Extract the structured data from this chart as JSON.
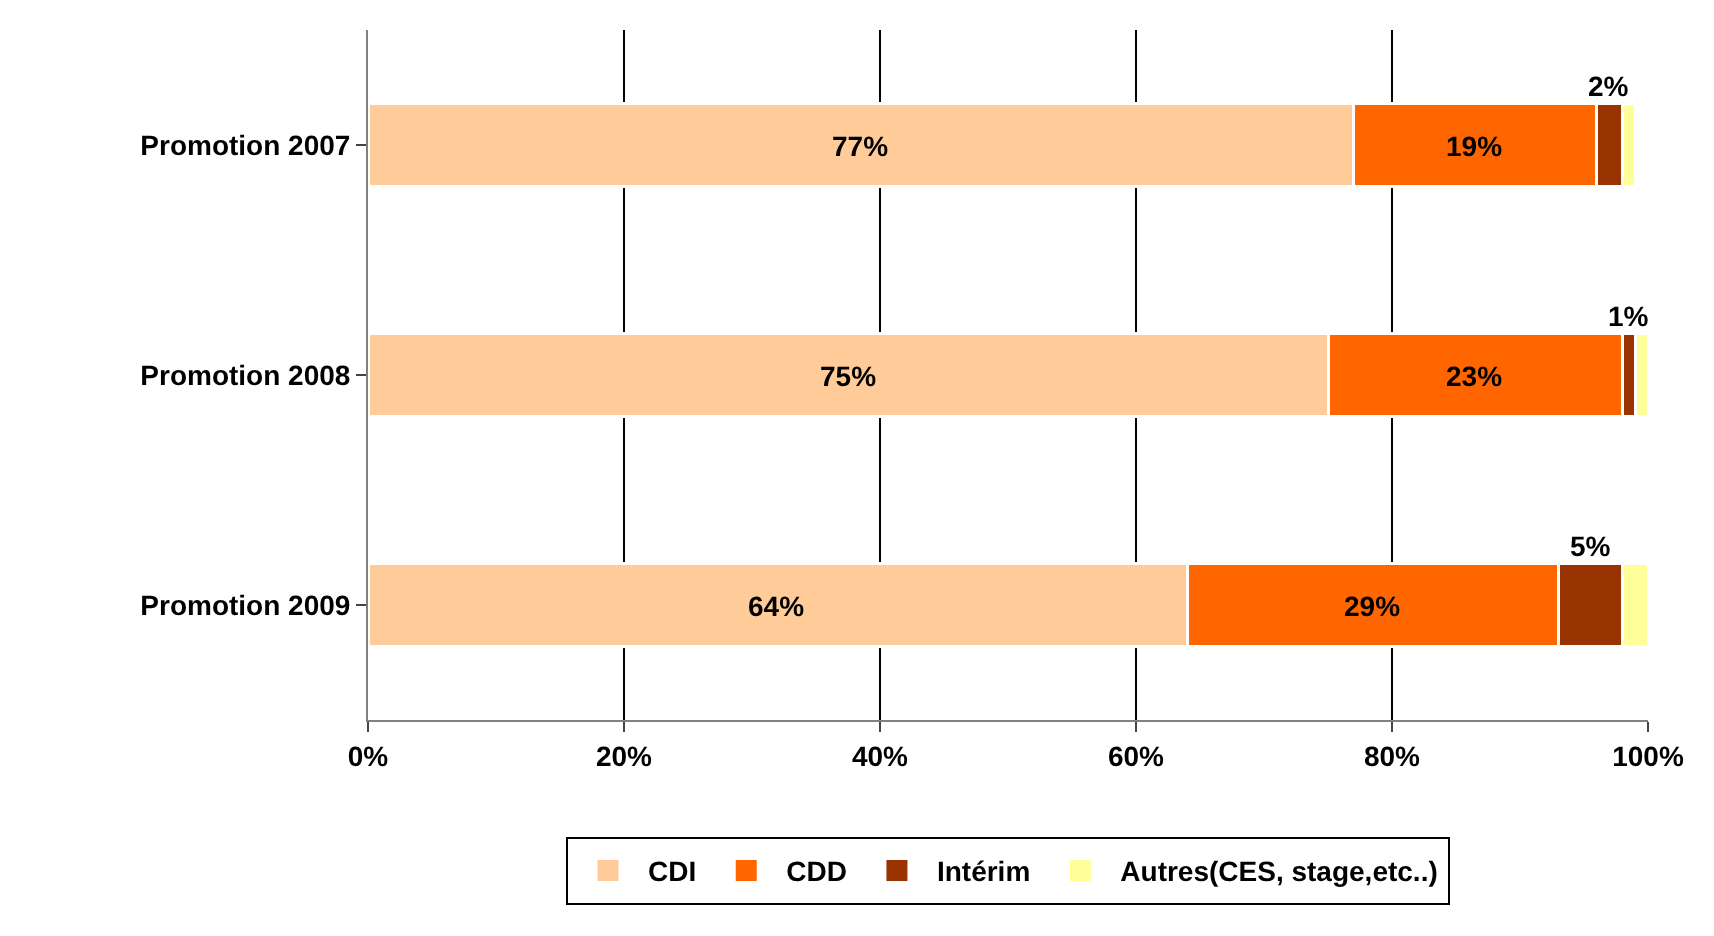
{
  "chart_data": {
    "type": "bar",
    "orientation": "horizontal",
    "stacked": true,
    "categories": [
      "Promotion 2007",
      "Promotion 2008",
      "Promotion 2009"
    ],
    "series": [
      {
        "name": "CDI",
        "color": "#ffcc99",
        "values": [
          77,
          75,
          64
        ],
        "value_labels": [
          "77%",
          "75%",
          "64%"
        ]
      },
      {
        "name": "CDD",
        "color": "#ff6600",
        "values": [
          19,
          23,
          29
        ],
        "value_labels": [
          "19%",
          "23%",
          "29%"
        ]
      },
      {
        "name": "Intérim",
        "color": "#993300",
        "values": [
          2,
          1,
          5
        ],
        "value_labels": [
          "2%",
          "1%",
          "5%"
        ]
      },
      {
        "name": "Autres(CES, stage,etc..)",
        "color": "#ffff99",
        "values": [
          1,
          1,
          2
        ],
        "value_labels": [
          null,
          null,
          null
        ]
      }
    ],
    "xlim": [
      0,
      100
    ],
    "xticks": [
      {
        "value": 0,
        "label": "0%"
      },
      {
        "value": 20,
        "label": "20%"
      },
      {
        "value": 40,
        "label": "40%"
      },
      {
        "value": 60,
        "label": "60%"
      },
      {
        "value": 80,
        "label": "80%"
      },
      {
        "value": 100,
        "label": "100%"
      }
    ],
    "grid": "x",
    "legend": "bottom"
  }
}
